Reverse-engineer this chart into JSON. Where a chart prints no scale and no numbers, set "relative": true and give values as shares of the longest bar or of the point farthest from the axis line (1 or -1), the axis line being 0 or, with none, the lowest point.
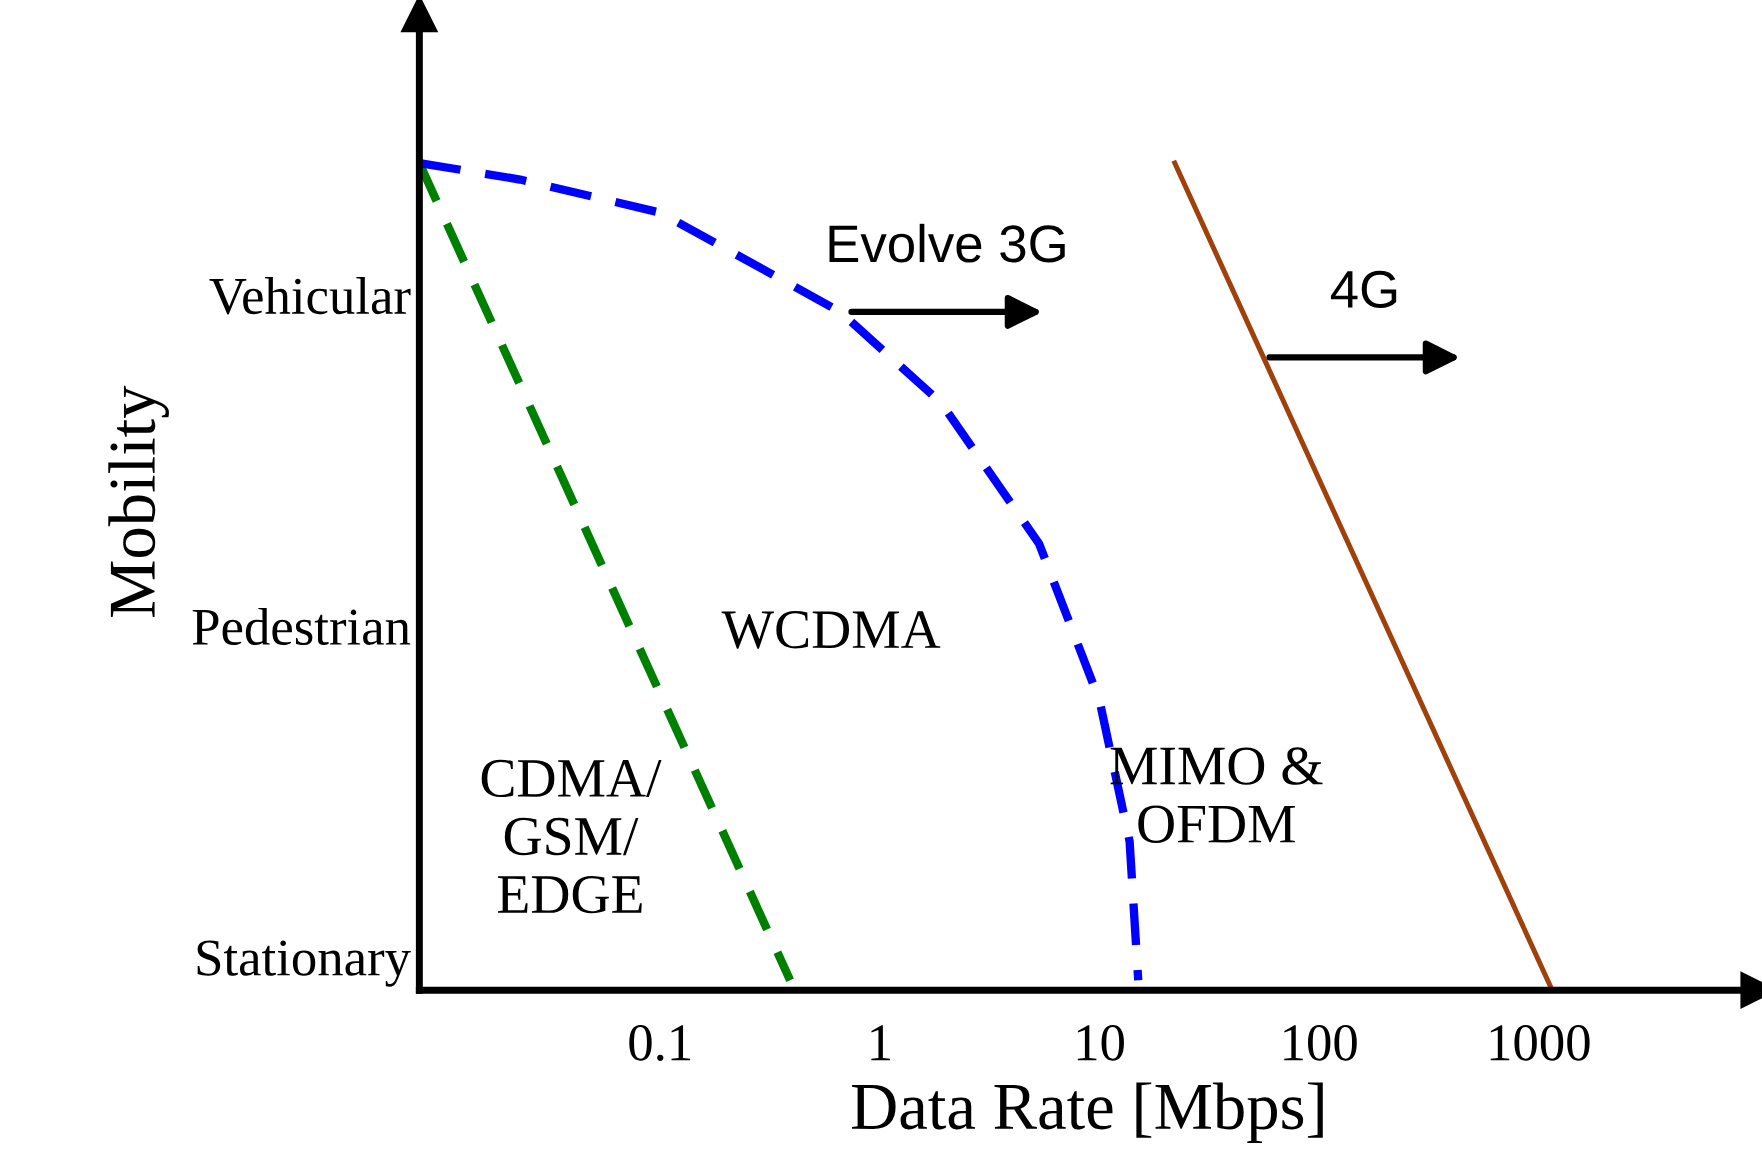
{
  "chart_data": {
    "type": "line",
    "xlabel": "Data Rate [Mbps]",
    "ylabel": "Mobility",
    "log": "x",
    "xlim": [
      0.008,
      10000
    ],
    "xticks": [
      0.1,
      1,
      10,
      100,
      1000
    ],
    "relative": true,
    "grid": false,
    "legend": false,
    "marker": "none",
    "series": [
      {
        "color": "#008000",
        "line_style": "dashed",
        "x": [
          0.008,
          0.39
        ],
        "values": [
          1,
          0.012
        ]
      },
      {
        "color": "#0000ff",
        "line_style": "dashed",
        "x": [
          0.008,
          0.023,
          0.1,
          0.66,
          1.9,
          5.3,
          10,
          13.7,
          15
        ],
        "values": [
          1,
          0.98,
          0.94,
          0.82,
          0.71,
          0.54,
          0.35,
          0.18,
          0.012
        ]
      },
      {
        "color": "#a0400a",
        "line_style": "solid",
        "x": [
          22,
          1150
        ],
        "values": [
          1,
          0
        ]
      }
    ],
    "annotations": [
      {
        "text": "Evolve 3G",
        "x": 0.7,
        "y": 0.82
      },
      {
        "text": "4G",
        "x": 56,
        "y": 0.765
      },
      "Vehicular",
      "Pedestrian",
      "Stationary",
      "WCDMA",
      "CDMA/\nGSM/\nEDGE",
      "MIMO &\nOFDM"
    ]
  }
}
